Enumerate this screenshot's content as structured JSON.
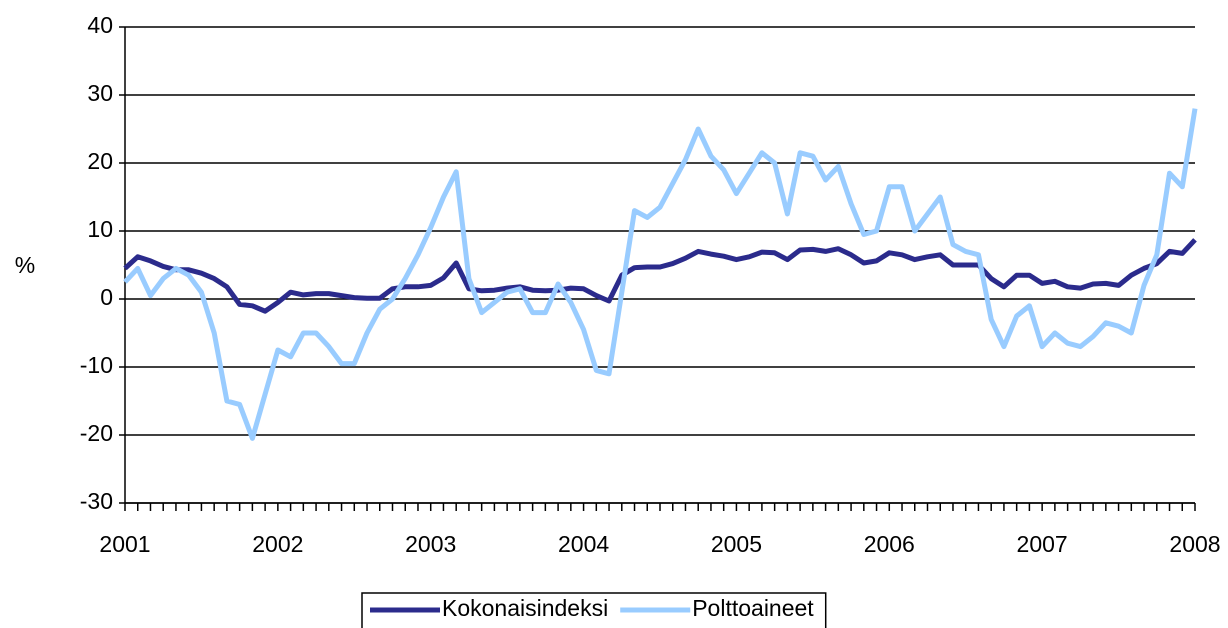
{
  "chart_data": {
    "type": "line",
    "y_label": "%",
    "categories": [
      "2001",
      null,
      null,
      null,
      null,
      null,
      null,
      null,
      null,
      null,
      null,
      null,
      "2002",
      null,
      null,
      null,
      null,
      null,
      null,
      null,
      null,
      null,
      null,
      null,
      "2003",
      null,
      null,
      null,
      null,
      null,
      null,
      null,
      null,
      null,
      null,
      null,
      "2004",
      null,
      null,
      null,
      null,
      null,
      null,
      null,
      null,
      null,
      null,
      null,
      "2005",
      null,
      null,
      null,
      null,
      null,
      null,
      null,
      null,
      null,
      null,
      null,
      "2006",
      null,
      null,
      null,
      null,
      null,
      null,
      null,
      null,
      null,
      null,
      null,
      "2007",
      null,
      null,
      null,
      null,
      null,
      null,
      null,
      null,
      null,
      null,
      null,
      "2008"
    ],
    "series": [
      {
        "name": "Kokonaisindeksi",
        "color": "#2b2b8c",
        "values": [
          4.5,
          6.2,
          5.6,
          4.8,
          4.3,
          4.3,
          3.8,
          3.0,
          1.8,
          -0.8,
          -1.0,
          -1.8,
          -0.5,
          1.0,
          0.6,
          0.8,
          0.8,
          0.5,
          0.2,
          0.1,
          0.1,
          1.5,
          1.8,
          1.8,
          2.0,
          3.1,
          5.3,
          1.5,
          1.2,
          1.3,
          1.6,
          1.8,
          1.3,
          1.2,
          1.3,
          1.6,
          1.5,
          0.5,
          -0.3,
          3.5,
          4.6,
          4.7,
          4.7,
          5.2,
          6.0,
          7.0,
          6.6,
          6.3,
          5.8,
          6.2,
          6.9,
          6.8,
          5.8,
          7.2,
          7.3,
          7.0,
          7.4,
          6.5,
          5.3,
          5.6,
          6.8,
          6.5,
          5.8,
          6.2,
          6.5,
          5.0,
          5.0,
          5.0,
          3.0,
          1.8,
          3.5,
          3.5,
          2.3,
          2.6,
          1.8,
          1.6,
          2.2,
          2.3,
          2.0,
          3.5,
          4.5,
          5.2,
          7.0,
          6.7,
          8.7
        ]
      },
      {
        "name": "Polttoaineet",
        "color": "#99ccff",
        "values": [
          2.5,
          4.5,
          0.5,
          3.0,
          4.5,
          3.5,
          1.0,
          -5.0,
          -15.0,
          -15.5,
          -20.5,
          -14.0,
          -7.5,
          -8.5,
          -5.0,
          -5.0,
          -7.0,
          -9.5,
          -9.5,
          -5.0,
          -1.5,
          0.0,
          3.0,
          6.5,
          10.5,
          15.0,
          18.7,
          3.0,
          -2.0,
          -0.5,
          1.0,
          1.5,
          -2.0,
          -2.0,
          2.2,
          -0.5,
          -4.5,
          -10.5,
          -11.0,
          1.0,
          13.0,
          12.0,
          13.5,
          17.0,
          20.5,
          25.0,
          21.0,
          19.0,
          15.5,
          18.5,
          21.5,
          20.0,
          12.5,
          21.5,
          21.0,
          17.5,
          19.5,
          14.0,
          9.5,
          10.0,
          16.5,
          16.5,
          10.0,
          12.5,
          15.0,
          8.0,
          7.0,
          6.5,
          -3.0,
          -7.0,
          -2.5,
          -1.0,
          -7.0,
          -5.0,
          -6.5,
          -7.0,
          -5.5,
          -3.5,
          -4.0,
          -5.0,
          2.0,
          6.5,
          18.5,
          16.5,
          28.0
        ]
      }
    ],
    "ylim": [
      -30,
      40
    ],
    "yticks": [
      -30,
      -20,
      -10,
      0,
      10,
      20,
      30,
      40
    ],
    "grid": true,
    "legend": "bottom"
  }
}
